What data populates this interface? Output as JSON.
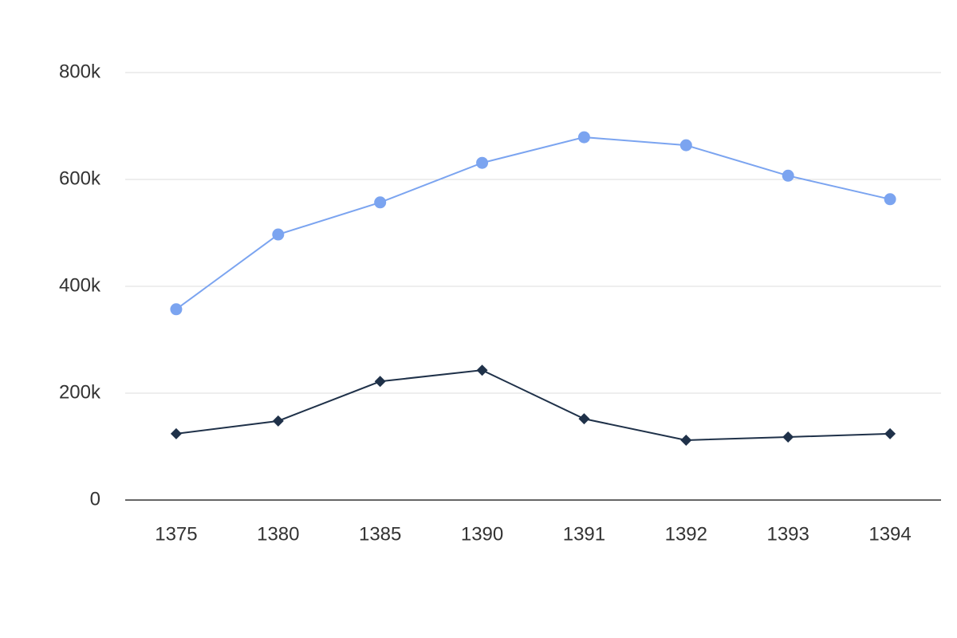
{
  "chart_data": {
    "type": "line",
    "categories": [
      "1375",
      "1380",
      "1385",
      "1390",
      "1391",
      "1392",
      "1393",
      "1394"
    ],
    "series": [
      {
        "color": "#7ba4f0",
        "marker": "circle",
        "values": [
          357000,
          497000,
          557000,
          631000,
          679000,
          664000,
          607000,
          563000
        ]
      },
      {
        "color": "#1f3149",
        "marker": "diamond",
        "values": [
          124000,
          148000,
          222000,
          243000,
          152000,
          112000,
          118000,
          124000
        ]
      }
    ],
    "ylim": [
      0,
      800000
    ],
    "yticks": [
      0,
      {
        "value": 200000,
        "label": "200k"
      },
      {
        "value": 400000,
        "label": "400k"
      },
      {
        "value": 600000,
        "label": "600k"
      },
      {
        "value": 800000,
        "label": "800k"
      }
    ],
    "grid": true
  }
}
